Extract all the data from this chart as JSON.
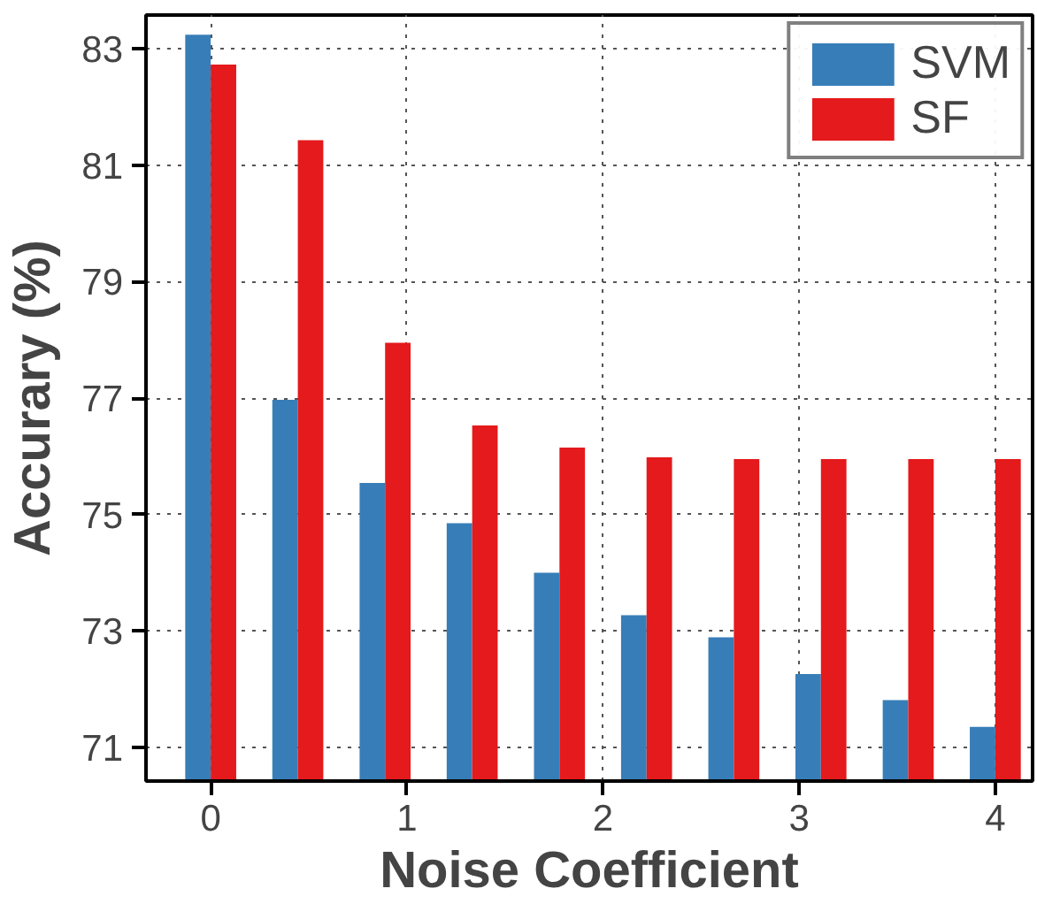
{
  "chart_data": {
    "type": "bar",
    "xlabel": "Noise Coefficient",
    "ylabel": "Accurary (%)",
    "x": [
      0,
      0.444,
      0.889,
      1.333,
      1.778,
      2.222,
      2.667,
      3.111,
      3.556,
      4
    ],
    "series": [
      {
        "name": "SVM",
        "color": "#377eb8",
        "values": [
          83.24,
          76.97,
          75.54,
          74.85,
          74.0,
          73.27,
          72.89,
          72.26,
          71.81,
          71.35
        ]
      },
      {
        "name": "SF",
        "color": "#e41a1c",
        "values": [
          82.73,
          81.43,
          77.95,
          76.53,
          76.15,
          75.98,
          75.95,
          75.95,
          75.95,
          75.95
        ]
      }
    ],
    "xlim": [
      -0.33,
      4.19
    ],
    "ylim": [
      70.42,
      83.58
    ],
    "xticks": [
      0,
      1,
      2,
      3,
      4
    ],
    "yticks": [
      71,
      73,
      75,
      77,
      79,
      81,
      83
    ],
    "grid": true,
    "legend": "top right"
  }
}
